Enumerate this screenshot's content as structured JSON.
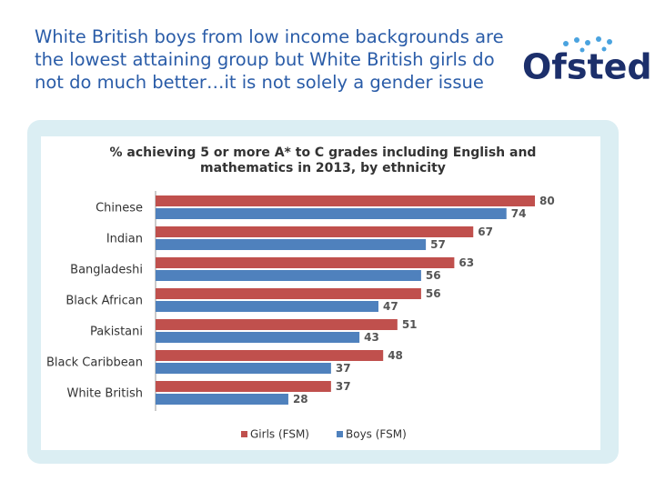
{
  "heading": "White British boys from low income backgrounds are the lowest attaining group but White British girls do not do much better…it is not solely a gender issue",
  "logo": "Ofsted",
  "chart_data": {
    "type": "bar",
    "orientation": "horizontal",
    "title": "% achieving 5 or more A* to C grades including English and mathematics in 2013, by ethnicity",
    "categories": [
      "Chinese",
      "Indian",
      "Bangladeshi",
      "Black African",
      "Pakistani",
      "Black Caribbean",
      "White British"
    ],
    "series": [
      {
        "name": "Girls (FSM)",
        "color": "#c0504d",
        "values": [
          80,
          67,
          63,
          56,
          51,
          48,
          37
        ]
      },
      {
        "name": "Boys (FSM)",
        "color": "#4f81bd",
        "values": [
          74,
          57,
          56,
          47,
          43,
          37,
          28
        ]
      }
    ],
    "legend": "bottom"
  }
}
